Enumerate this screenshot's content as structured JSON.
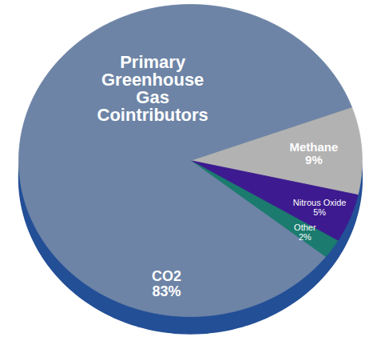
{
  "chart_data": {
    "type": "pie",
    "title": "Primary Greenhouse Gas Cointributors",
    "categories": [
      "Methane",
      "Nitrous Oxide",
      "Other",
      "CO2"
    ],
    "values": [
      9,
      5,
      2,
      83
    ],
    "value_labels": [
      "9%",
      "5%",
      "2%",
      "83%"
    ],
    "colors": [
      "#b2b2b2",
      "#3d1a8f",
      "#1b7b6e",
      "#6d84a6"
    ],
    "data_labels": true
  }
}
